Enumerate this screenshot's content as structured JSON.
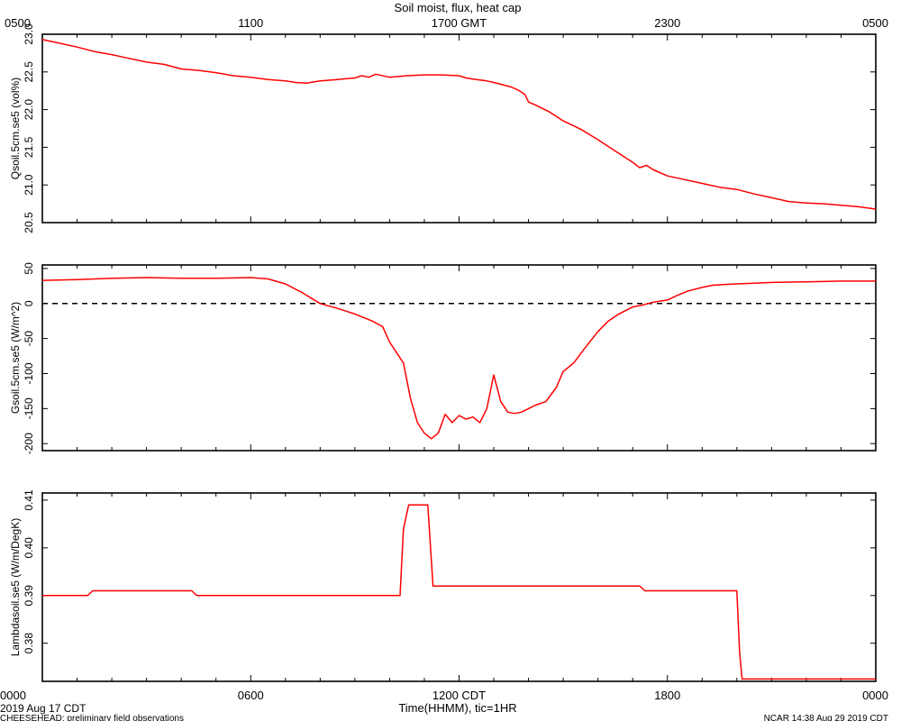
{
  "title": "Soil moist, flux, heat cap",
  "top_axis": {
    "labels": [
      "0500",
      "1100",
      "1700 GMT",
      "2300",
      "0500"
    ]
  },
  "bottom_axis": {
    "labels": [
      "0000",
      "0600",
      "1200 CDT",
      "1800",
      "0000"
    ],
    "xlabel": "Time(HHMM), tic=1HR"
  },
  "footer": {
    "date": "2019 Aug 17 CDT",
    "project": "CHEESEHEAD: preliminary field observations",
    "credit": "NCAR 14:38 Aug 29 2019 CDT"
  },
  "colors": {
    "series": "#ff0000",
    "axis": "#000000"
  },
  "chart_data": [
    {
      "type": "line",
      "ylabel": "Qsoil.5cm.se5 (vol%)",
      "ylim": [
        20.5,
        23.0
      ],
      "yticks": [
        "20.5",
        "21.0",
        "21.5",
        "22.0",
        "22.5",
        "23.0"
      ],
      "xlim": [
        0,
        24
      ],
      "x_unit": "hours CDT",
      "series": [
        {
          "x": [
            0,
            0.5,
            1,
            1.5,
            2,
            2.5,
            3,
            3.5,
            4,
            4.5,
            5,
            5.5,
            6,
            6.5,
            7,
            7.3,
            7.6,
            8,
            8.5,
            9,
            9.2,
            9.4,
            9.6,
            10,
            10.5,
            11,
            11.5,
            12,
            12.2,
            12.5,
            12.8,
            13,
            13.5,
            13.7,
            13.9,
            14,
            14.2,
            14.6,
            15,
            15.5,
            16,
            16.5,
            17,
            17.2,
            17.4,
            17.6,
            18,
            18.5,
            19,
            19.5,
            20,
            20.5,
            21,
            21.5,
            22,
            22.5,
            23,
            23.5,
            24
          ],
          "y": [
            22.93,
            22.88,
            22.83,
            22.77,
            22.73,
            22.68,
            22.63,
            22.6,
            22.54,
            22.52,
            22.49,
            22.45,
            22.43,
            22.4,
            22.38,
            22.36,
            22.35,
            22.38,
            22.4,
            22.42,
            22.45,
            22.43,
            22.47,
            22.43,
            22.45,
            22.46,
            22.46,
            22.45,
            22.42,
            22.4,
            22.38,
            22.36,
            22.3,
            22.26,
            22.2,
            22.1,
            22.06,
            21.97,
            21.85,
            21.74,
            21.6,
            21.45,
            21.3,
            21.23,
            21.26,
            21.2,
            21.12,
            21.07,
            21.02,
            20.97,
            20.94,
            20.88,
            20.83,
            20.78,
            20.76,
            20.75,
            20.73,
            20.71,
            20.68
          ]
        }
      ]
    },
    {
      "type": "line",
      "ylabel": "Gsoil.5cm.se5 (W/m^2)",
      "ylim": [
        -210,
        55
      ],
      "yticks": [
        "-200",
        "-150",
        "-100",
        "-50",
        "0",
        "50"
      ],
      "reference_line": {
        "y": 0,
        "style": "dashed"
      },
      "xlim": [
        0,
        24
      ],
      "x_unit": "hours CDT",
      "series": [
        {
          "x": [
            0,
            1,
            2,
            3,
            4,
            5,
            6,
            6.5,
            7,
            7.5,
            8,
            8.5,
            9,
            9.5,
            9.8,
            10,
            10.2,
            10.4,
            10.6,
            10.8,
            11,
            11.2,
            11.4,
            11.6,
            11.8,
            12,
            12.2,
            12.4,
            12.6,
            12.8,
            13,
            13.2,
            13.4,
            13.6,
            13.8,
            14,
            14.2,
            14.5,
            14.8,
            15,
            15.3,
            15.6,
            16,
            16.3,
            16.6,
            17,
            17.3,
            17.6,
            18,
            18.3,
            18.6,
            19,
            19.3,
            19.6,
            20,
            20.5,
            21,
            22,
            23,
            24
          ],
          "y": [
            33,
            34,
            36,
            37,
            36,
            36,
            37,
            35,
            28,
            15,
            0,
            -7,
            -15,
            -25,
            -33,
            -55,
            -70,
            -85,
            -135,
            -170,
            -185,
            -193,
            -185,
            -158,
            -170,
            -160,
            -165,
            -162,
            -170,
            -150,
            -102,
            -140,
            -155,
            -157,
            -155,
            -150,
            -145,
            -140,
            -120,
            -97,
            -85,
            -65,
            -40,
            -25,
            -15,
            -5,
            -2,
            2,
            5,
            12,
            18,
            23,
            26,
            27,
            28,
            29,
            30,
            31,
            32,
            32
          ]
        }
      ]
    },
    {
      "type": "line",
      "ylabel": "Lambdasoil.se5 (W/m/DegK)",
      "ylim": [
        0.372,
        0.4115
      ],
      "yticks": [
        "0.38",
        "0.39",
        "0.40",
        "0.41"
      ],
      "xlim": [
        0,
        24
      ],
      "x_unit": "hours CDT",
      "series": [
        {
          "x": [
            0,
            1.3,
            1.45,
            4.3,
            4.45,
            10.3,
            10.4,
            10.55,
            11.1,
            11.25,
            17.2,
            17.35,
            20.0,
            20.08,
            20.15,
            24
          ],
          "y": [
            0.39,
            0.39,
            0.391,
            0.391,
            0.39,
            0.39,
            0.404,
            0.409,
            0.409,
            0.392,
            0.392,
            0.391,
            0.391,
            0.378,
            0.3725,
            0.3725
          ]
        }
      ]
    }
  ]
}
